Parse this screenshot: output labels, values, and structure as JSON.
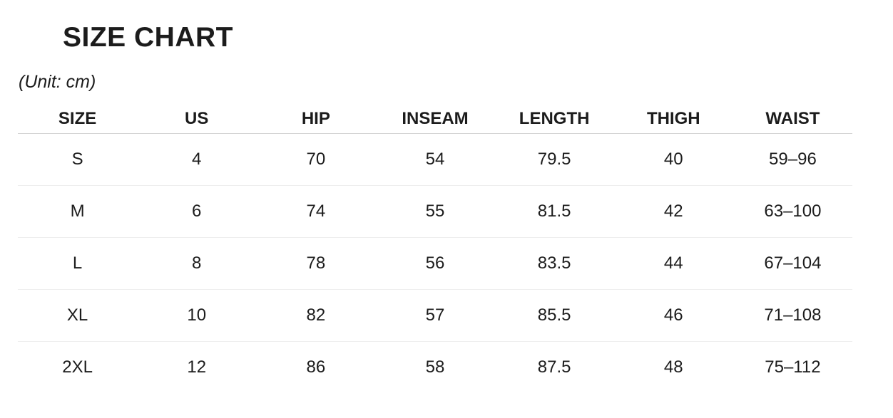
{
  "header": {
    "title": "SIZE CHART",
    "unit_note": "(Unit: cm)"
  },
  "colors": {
    "background": "#ffffff",
    "text": "#1c1c1c",
    "header_divider": "#d4d4d4",
    "row_divider": "#eeeeee"
  },
  "chart_data": {
    "type": "table",
    "title": "SIZE CHART",
    "unit": "cm",
    "columns": [
      "SIZE",
      "US",
      "HIP",
      "INSEAM",
      "LENGTH",
      "THIGH",
      "WAIST"
    ],
    "rows": [
      [
        "S",
        "4",
        "70",
        "54",
        "79.5",
        "40",
        "59–96"
      ],
      [
        "M",
        "6",
        "74",
        "55",
        "81.5",
        "42",
        "63–100"
      ],
      [
        "L",
        "8",
        "78",
        "56",
        "83.5",
        "44",
        "67–104"
      ],
      [
        "XL",
        "10",
        "82",
        "57",
        "85.5",
        "46",
        "71–108"
      ],
      [
        "2XL",
        "12",
        "86",
        "58",
        "87.5",
        "48",
        "75–112"
      ]
    ]
  }
}
